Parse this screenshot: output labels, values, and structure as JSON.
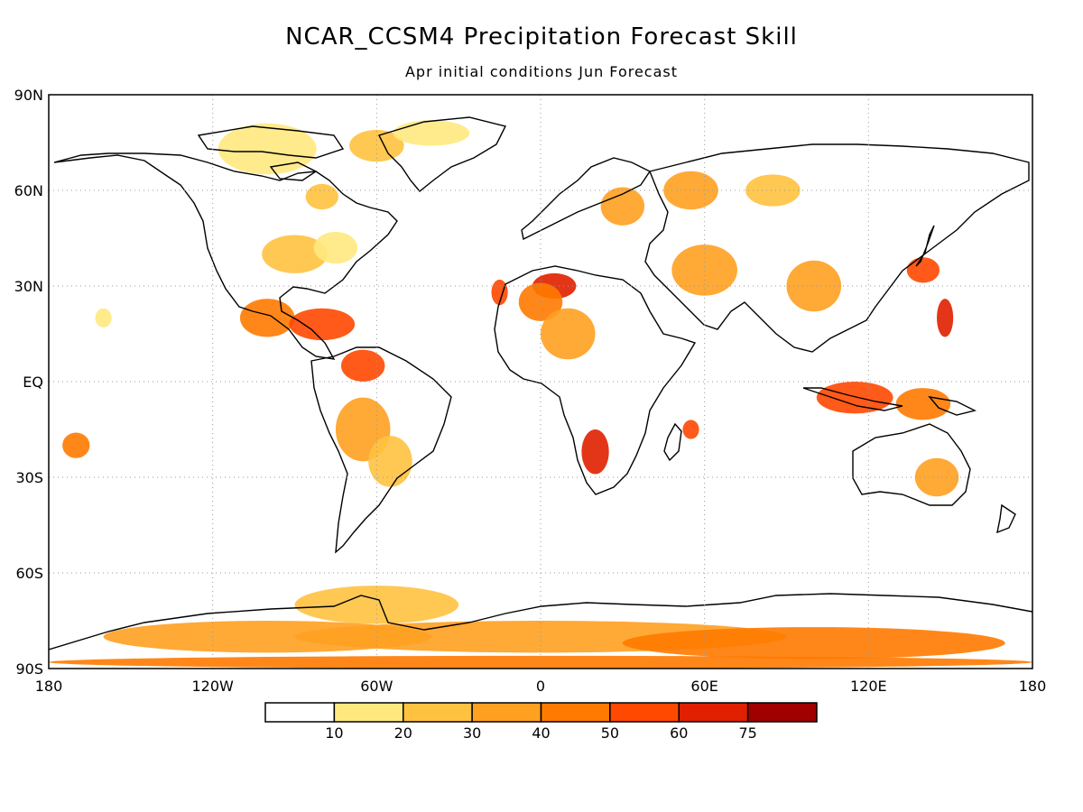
{
  "title": "NCAR_CCSM4 Precipitation Forecast Skill",
  "subtitle": "Apr initial conditions  Jun Forecast",
  "lat_labels": [
    "90N",
    "60N",
    "30N",
    "EQ",
    "30S",
    "60S",
    "90S"
  ],
  "lon_labels": [
    "180",
    "120W",
    "60W",
    "0",
    "60E",
    "120E",
    "180"
  ],
  "colorbar": {
    "labels": [
      "10",
      "20",
      "30",
      "40",
      "50",
      "60",
      "75"
    ],
    "colors": [
      "#ffffff",
      "#ffe97f",
      "#ffc240",
      "#ffa020",
      "#ff7a00",
      "#ff4800",
      "#e02000",
      "#a00000"
    ]
  },
  "map": {
    "lon_range": [
      -180,
      180
    ],
    "lat_range": [
      -90,
      90
    ],
    "gridlines": "dotted",
    "skill_patches": [
      {
        "lon": -100,
        "lat": 73,
        "level": 1,
        "rx": 18,
        "ry": 8
      },
      {
        "lon": -80,
        "lat": 58,
        "level": 2,
        "rx": 6,
        "ry": 4
      },
      {
        "lon": -60,
        "lat": 74,
        "level": 2,
        "rx": 10,
        "ry": 5
      },
      {
        "lon": -40,
        "lat": 78,
        "level": 1,
        "rx": 14,
        "ry": 4
      },
      {
        "lon": -90,
        "lat": 40,
        "level": 2,
        "rx": 12,
        "ry": 6
      },
      {
        "lon": -75,
        "lat": 42,
        "level": 1,
        "rx": 8,
        "ry": 5
      },
      {
        "lon": -100,
        "lat": 20,
        "level": 4,
        "rx": 10,
        "ry": 6
      },
      {
        "lon": -80,
        "lat": 18,
        "level": 5,
        "rx": 12,
        "ry": 5
      },
      {
        "lon": -65,
        "lat": 5,
        "level": 5,
        "rx": 8,
        "ry": 5
      },
      {
        "lon": -65,
        "lat": -15,
        "level": 3,
        "rx": 10,
        "ry": 10
      },
      {
        "lon": -55,
        "lat": -25,
        "level": 2,
        "rx": 8,
        "ry": 8
      },
      {
        "lon": -170,
        "lat": -20,
        "level": 4,
        "rx": 5,
        "ry": 4
      },
      {
        "lon": -160,
        "lat": 20,
        "level": 1,
        "rx": 3,
        "ry": 3
      },
      {
        "lon": -15,
        "lat": 28,
        "level": 5,
        "rx": 3,
        "ry": 4
      },
      {
        "lon": 5,
        "lat": 30,
        "level": 6,
        "rx": 8,
        "ry": 4
      },
      {
        "lon": 0,
        "lat": 25,
        "level": 4,
        "rx": 8,
        "ry": 6
      },
      {
        "lon": 10,
        "lat": 15,
        "level": 3,
        "rx": 10,
        "ry": 8
      },
      {
        "lon": 20,
        "lat": -22,
        "level": 6,
        "rx": 5,
        "ry": 7
      },
      {
        "lon": 30,
        "lat": 55,
        "level": 3,
        "rx": 8,
        "ry": 6
      },
      {
        "lon": 55,
        "lat": 60,
        "level": 3,
        "rx": 10,
        "ry": 6
      },
      {
        "lon": 85,
        "lat": 60,
        "level": 2,
        "rx": 10,
        "ry": 5
      },
      {
        "lon": 60,
        "lat": 35,
        "level": 3,
        "rx": 12,
        "ry": 8
      },
      {
        "lon": 100,
        "lat": 30,
        "level": 3,
        "rx": 10,
        "ry": 8
      },
      {
        "lon": 140,
        "lat": 35,
        "level": 5,
        "rx": 6,
        "ry": 4
      },
      {
        "lon": 148,
        "lat": 20,
        "level": 6,
        "rx": 3,
        "ry": 6
      },
      {
        "lon": 115,
        "lat": -5,
        "level": 5,
        "rx": 14,
        "ry": 5
      },
      {
        "lon": 140,
        "lat": -7,
        "level": 4,
        "rx": 10,
        "ry": 5
      },
      {
        "lon": 145,
        "lat": -30,
        "level": 3,
        "rx": 8,
        "ry": 6
      },
      {
        "lon": 55,
        "lat": -15,
        "level": 5,
        "rx": 3,
        "ry": 3
      },
      {
        "lon": -60,
        "lat": -70,
        "level": 2,
        "rx": 30,
        "ry": 6
      },
      {
        "lon": 0,
        "lat": -80,
        "level": 3,
        "rx": 90,
        "ry": 5
      },
      {
        "lon": 100,
        "lat": -82,
        "level": 4,
        "rx": 70,
        "ry": 5
      },
      {
        "lon": -100,
        "lat": -80,
        "level": 3,
        "rx": 60,
        "ry": 5
      },
      {
        "lon": 0,
        "lat": -88,
        "level": 4,
        "rx": 180,
        "ry": 2
      }
    ]
  }
}
